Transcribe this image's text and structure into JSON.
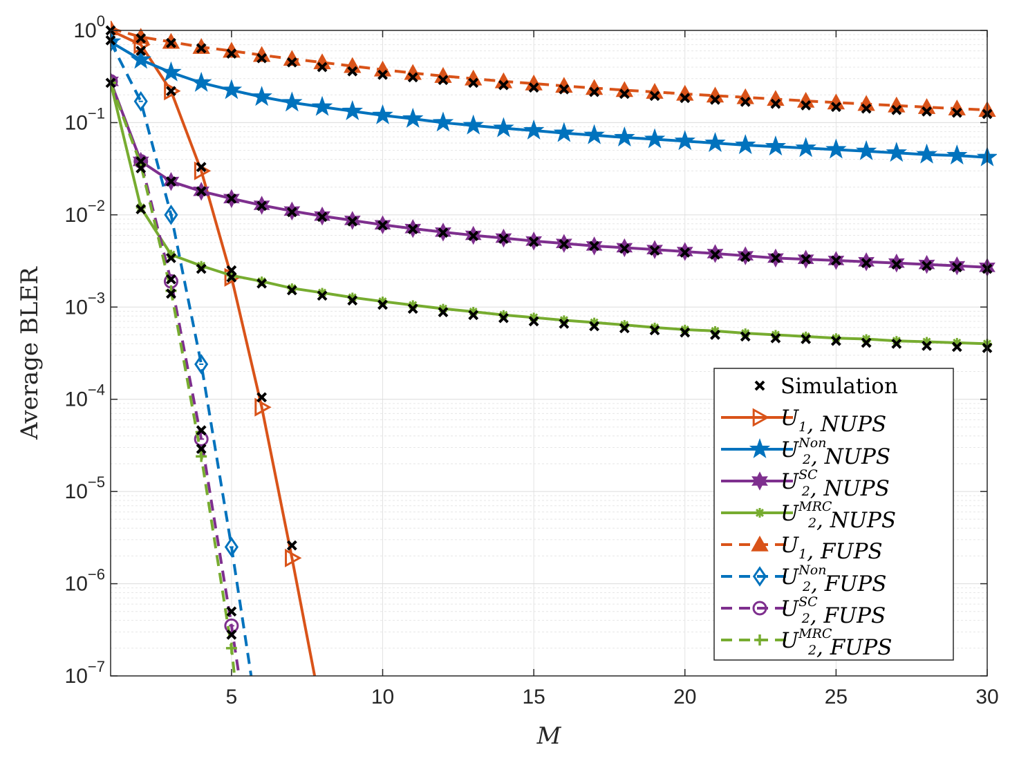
{
  "chart_data": {
    "type": "line",
    "yscale": "log",
    "xlabel": "M",
    "ylabel": "Average BLER",
    "xlim": [
      1,
      30
    ],
    "ylim": [
      1e-07,
      1
    ],
    "xticks": [
      5,
      10,
      15,
      20,
      25,
      30
    ],
    "xtick_labels": [
      "5",
      "10",
      "15",
      "20",
      "25",
      "30"
    ],
    "yticks": [
      1e-07,
      1e-06,
      1e-05,
      0.0001,
      0.001,
      0.01,
      0.1,
      1
    ],
    "ytick_labels": [
      {
        "base": "10",
        "exp": "−7"
      },
      {
        "base": "10",
        "exp": "−6"
      },
      {
        "base": "10",
        "exp": "−5"
      },
      {
        "base": "10",
        "exp": "−4"
      },
      {
        "base": "10",
        "exp": "−3"
      },
      {
        "base": "10",
        "exp": "−2"
      },
      {
        "base": "10",
        "exp": "−1"
      },
      {
        "base": "10",
        "exp": "0"
      }
    ],
    "grid": true,
    "legend_position": "bottom-right",
    "legend": [
      {
        "label": "Simulation",
        "sub": "",
        "sup": "",
        "rest": ""
      },
      {
        "label": "U",
        "sub": "1",
        "sup": "",
        "rest": ", NUPS"
      },
      {
        "label": "U",
        "sub": "2",
        "sup": "Non",
        "rest": ", NUPS"
      },
      {
        "label": "U",
        "sub": "2",
        "sup": "SC",
        "rest": ", NUPS"
      },
      {
        "label": "U",
        "sub": "2",
        "sup": "MRC",
        "rest": ", NUPS"
      },
      {
        "label": "U",
        "sub": "1",
        "sup": "",
        "rest": ", FUPS"
      },
      {
        "label": "U",
        "sub": "2",
        "sup": "Non",
        "rest": ", FUPS"
      },
      {
        "label": "U",
        "sub": "2",
        "sup": "SC",
        "rest": ", FUPS"
      },
      {
        "label": "U",
        "sub": "2",
        "sup": "MRC",
        "rest": ", FUPS"
      }
    ],
    "series": [
      {
        "name": "U1, NUPS",
        "color": "#D95319",
        "dash": "solid",
        "marker": "triangle-right",
        "x": [
          1,
          2,
          3,
          4,
          5,
          6,
          7,
          7.75
        ],
        "y": [
          1.0,
          0.7,
          0.22,
          0.03,
          0.0021,
          8.2e-05,
          1.9e-06,
          1e-07
        ]
      },
      {
        "name": "U2Non, NUPS",
        "color": "#0072BD",
        "dash": "solid",
        "marker": "star",
        "x": [
          1,
          2,
          3,
          4,
          5,
          6,
          7,
          8,
          9,
          10,
          11,
          12,
          13,
          14,
          15,
          16,
          17,
          18,
          19,
          20,
          21,
          22,
          23,
          24,
          25,
          26,
          27,
          28,
          29,
          30
        ],
        "y": [
          0.75,
          0.48,
          0.35,
          0.27,
          0.225,
          0.19,
          0.165,
          0.148,
          0.133,
          0.12,
          0.11,
          0.1,
          0.093,
          0.087,
          0.082,
          0.077,
          0.073,
          0.069,
          0.066,
          0.063,
          0.06,
          0.057,
          0.055,
          0.053,
          0.051,
          0.049,
          0.047,
          0.045,
          0.044,
          0.042
        ]
      },
      {
        "name": "U2SC, NUPS",
        "color": "#7E2F8E",
        "dash": "solid",
        "marker": "hexagram",
        "x": [
          1,
          2,
          3,
          4,
          5,
          6,
          7,
          8,
          9,
          10,
          11,
          12,
          13,
          14,
          15,
          16,
          17,
          18,
          19,
          20,
          21,
          22,
          23,
          24,
          25,
          26,
          27,
          28,
          29,
          30
        ],
        "y": [
          0.28,
          0.038,
          0.023,
          0.018,
          0.015,
          0.0127,
          0.011,
          0.0097,
          0.0087,
          0.0078,
          0.0071,
          0.0065,
          0.006,
          0.0056,
          0.0052,
          0.0049,
          0.0046,
          0.0044,
          0.0042,
          0.004,
          0.0038,
          0.0036,
          0.0034,
          0.0033,
          0.0032,
          0.0031,
          0.003,
          0.0029,
          0.0028,
          0.0027
        ]
      },
      {
        "name": "U2MRC, NUPS",
        "color": "#77AC30",
        "dash": "solid",
        "marker": "asterisk",
        "x": [
          1,
          2,
          3,
          4,
          5,
          6,
          7,
          8,
          9,
          10,
          11,
          12,
          13,
          14,
          15,
          16,
          17,
          18,
          19,
          20,
          21,
          22,
          23,
          24,
          25,
          26,
          27,
          28,
          29,
          30
        ],
        "y": [
          0.27,
          0.012,
          0.0037,
          0.0028,
          0.0022,
          0.0019,
          0.0016,
          0.00143,
          0.00127,
          0.00115,
          0.00105,
          0.00096,
          0.00089,
          0.00082,
          0.00077,
          0.00072,
          0.00068,
          0.00064,
          0.0006,
          0.00057,
          0.00055,
          0.00052,
          0.0005,
          0.00048,
          0.00046,
          0.00045,
          0.00043,
          0.00042,
          0.00041,
          0.0004
        ]
      },
      {
        "name": "U1, FUPS",
        "color": "#D95319",
        "dash": "dashed",
        "marker": "triangle-up",
        "x": [
          1,
          2,
          3,
          4,
          5,
          6,
          7,
          8,
          9,
          10,
          11,
          12,
          13,
          14,
          15,
          16,
          17,
          18,
          19,
          20,
          21,
          22,
          23,
          24,
          25,
          26,
          27,
          28,
          29,
          30
        ],
        "y": [
          1.05,
          0.85,
          0.75,
          0.66,
          0.6,
          0.54,
          0.49,
          0.45,
          0.41,
          0.375,
          0.345,
          0.32,
          0.3,
          0.28,
          0.265,
          0.25,
          0.237,
          0.225,
          0.215,
          0.205,
          0.196,
          0.188,
          0.18,
          0.172,
          0.165,
          0.159,
          0.153,
          0.147,
          0.142,
          0.137
        ]
      },
      {
        "name": "U2Non, FUPS",
        "color": "#0072BD",
        "dash": "dashed",
        "marker": "diamond",
        "x": [
          1,
          2,
          3,
          4,
          5,
          5.65
        ],
        "y": [
          0.75,
          0.17,
          0.01,
          0.00024,
          2.5e-06,
          1e-07
        ]
      },
      {
        "name": "U2SC, FUPS",
        "color": "#7E2F8E",
        "dash": "dashed",
        "marker": "circle",
        "x": [
          1,
          2,
          3,
          4,
          5,
          5.25
        ],
        "y": [
          0.28,
          0.038,
          0.0019,
          3.7e-05,
          3.5e-07,
          1e-07
        ]
      },
      {
        "name": "U2MRC, FUPS",
        "color": "#77AC30",
        "dash": "dashed",
        "marker": "plus",
        "x": [
          1,
          2,
          3,
          4,
          5,
          5.1
        ],
        "y": [
          0.27,
          0.035,
          0.0015,
          2.4e-05,
          2e-07,
          1e-07
        ]
      }
    ],
    "simulation": {
      "name": "Simulation",
      "color": "#000000",
      "marker": "x",
      "points": [
        [
          1,
          1.0
        ],
        [
          2,
          0.82
        ],
        [
          3,
          0.73
        ],
        [
          4,
          0.64
        ],
        [
          5,
          0.56
        ],
        [
          6,
          0.5
        ],
        [
          7,
          0.45
        ],
        [
          8,
          0.4
        ],
        [
          9,
          0.36
        ],
        [
          10,
          0.33
        ],
        [
          11,
          0.31
        ],
        [
          12,
          0.29
        ],
        [
          13,
          0.27
        ],
        [
          14,
          0.255
        ],
        [
          15,
          0.24
        ],
        [
          16,
          0.23
        ],
        [
          17,
          0.215
        ],
        [
          18,
          0.205
        ],
        [
          19,
          0.195
        ],
        [
          20,
          0.185
        ],
        [
          21,
          0.177
        ],
        [
          22,
          0.168
        ],
        [
          23,
          0.16
        ],
        [
          24,
          0.154
        ],
        [
          25,
          0.148
        ],
        [
          26,
          0.142
        ],
        [
          27,
          0.137
        ],
        [
          28,
          0.132
        ],
        [
          29,
          0.128
        ],
        [
          30,
          0.124
        ],
        [
          2,
          0.6
        ],
        [
          3,
          0.22
        ],
        [
          4,
          0.033
        ],
        [
          5,
          0.0025
        ],
        [
          6,
          0.000105
        ],
        [
          7,
          2.6e-06
        ],
        [
          1,
          0.78
        ],
        [
          2,
          0.032
        ],
        [
          3,
          0.023
        ],
        [
          4,
          0.018
        ],
        [
          5,
          0.015
        ],
        [
          6,
          0.0125
        ],
        [
          7,
          0.0107
        ],
        [
          8,
          0.0095
        ],
        [
          9,
          0.0085
        ],
        [
          10,
          0.0077
        ],
        [
          11,
          0.007
        ],
        [
          12,
          0.0064
        ],
        [
          13,
          0.0059
        ],
        [
          14,
          0.0055
        ],
        [
          15,
          0.0051
        ],
        [
          16,
          0.0048
        ],
        [
          17,
          0.0046
        ],
        [
          18,
          0.0043
        ],
        [
          19,
          0.0041
        ],
        [
          20,
          0.0039
        ],
        [
          21,
          0.0037
        ],
        [
          22,
          0.0035
        ],
        [
          23,
          0.0034
        ],
        [
          24,
          0.0033
        ],
        [
          25,
          0.0032
        ],
        [
          26,
          0.003
        ],
        [
          27,
          0.0029
        ],
        [
          28,
          0.0028
        ],
        [
          29,
          0.0027
        ],
        [
          30,
          0.0026
        ],
        [
          1,
          0.27
        ],
        [
          2,
          0.0115
        ],
        [
          3,
          0.0034
        ],
        [
          4,
          0.0026
        ],
        [
          5,
          0.0021
        ],
        [
          6,
          0.0018
        ],
        [
          7,
          0.00152
        ],
        [
          8,
          0.00133
        ],
        [
          9,
          0.00118
        ],
        [
          10,
          0.00106
        ],
        [
          11,
          0.00096
        ],
        [
          12,
          0.00088
        ],
        [
          13,
          0.00082
        ],
        [
          14,
          0.00076
        ],
        [
          15,
          0.0007
        ],
        [
          16,
          0.00066
        ],
        [
          17,
          0.00062
        ],
        [
          18,
          0.00059
        ],
        [
          19,
          0.00056
        ],
        [
          20,
          0.00053
        ],
        [
          21,
          0.0005
        ],
        [
          22,
          0.00048
        ],
        [
          23,
          0.00046
        ],
        [
          24,
          0.00045
        ],
        [
          25,
          0.00043
        ],
        [
          26,
          0.00041
        ],
        [
          27,
          0.0004
        ],
        [
          28,
          0.00038
        ],
        [
          29,
          0.00037
        ],
        [
          30,
          0.00036
        ],
        [
          3,
          0.0014
        ],
        [
          3,
          0.002
        ],
        [
          4,
          4.6e-05
        ],
        [
          4,
          2.9e-05
        ],
        [
          5,
          5e-07
        ],
        [
          5,
          2.8e-07
        ],
        [
          2,
          0.038
        ]
      ]
    }
  }
}
